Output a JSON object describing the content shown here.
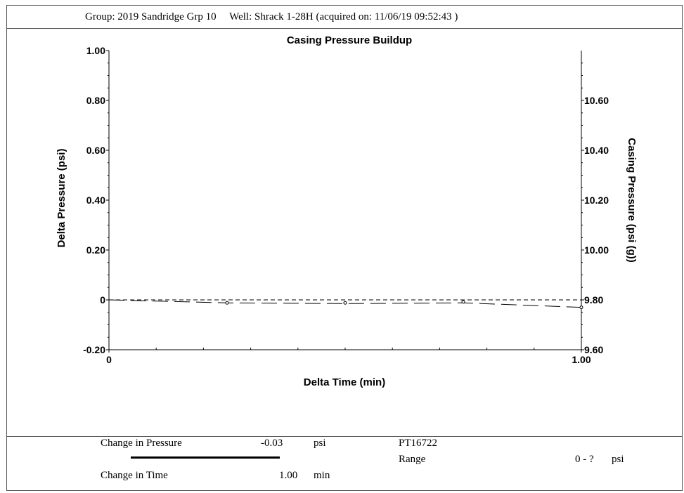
{
  "header": {
    "text": "Group: 2019 Sandridge Grp 10     Well: Shrack 1-28H (acquired on: 11/06/19 09:52:43 )"
  },
  "chart_data": {
    "type": "line",
    "title": "Casing Pressure Buildup",
    "xlabel": "Delta Time (min)",
    "ylabel": "Delta Pressure (psi)",
    "y2label": "Casing Pressure (psi (g))",
    "xlim": [
      0,
      1.0
    ],
    "ylim": [
      -0.2,
      1.0
    ],
    "y2lim": [
      9.6,
      10.8
    ],
    "x_ticks": [
      "0",
      "1.00"
    ],
    "y_ticks": [
      "-0.20",
      "0",
      "0.20",
      "0.40",
      "0.60",
      "0.80",
      "1.00"
    ],
    "y2_ticks": [
      "9.60",
      "9.80",
      "10.00",
      "10.20",
      "10.40",
      "10.60"
    ],
    "grid": false,
    "reference_line": {
      "style": "dashed",
      "y": 0
    },
    "series": [
      {
        "style": "long-dash",
        "x": [
          0,
          0.25,
          0.5,
          0.75,
          1.0
        ],
        "y": [
          0,
          -0.012,
          -0.015,
          -0.012,
          -0.03
        ]
      }
    ],
    "markers": {
      "x": [
        0.25,
        0.5,
        0.75,
        1.0
      ],
      "y": [
        -0.012,
        -0.012,
        -0.008,
        -0.03
      ]
    }
  },
  "footer": {
    "change_pressure_label": "Change in Pressure",
    "change_pressure_value": "-0.03",
    "change_pressure_unit": "psi",
    "change_time_label": "Change in Time",
    "change_time_value": "1.00",
    "change_time_unit": "min",
    "gauge_id": "PT16722",
    "range_label": "Range",
    "range_value": "0 - ?",
    "range_unit": "psi"
  }
}
